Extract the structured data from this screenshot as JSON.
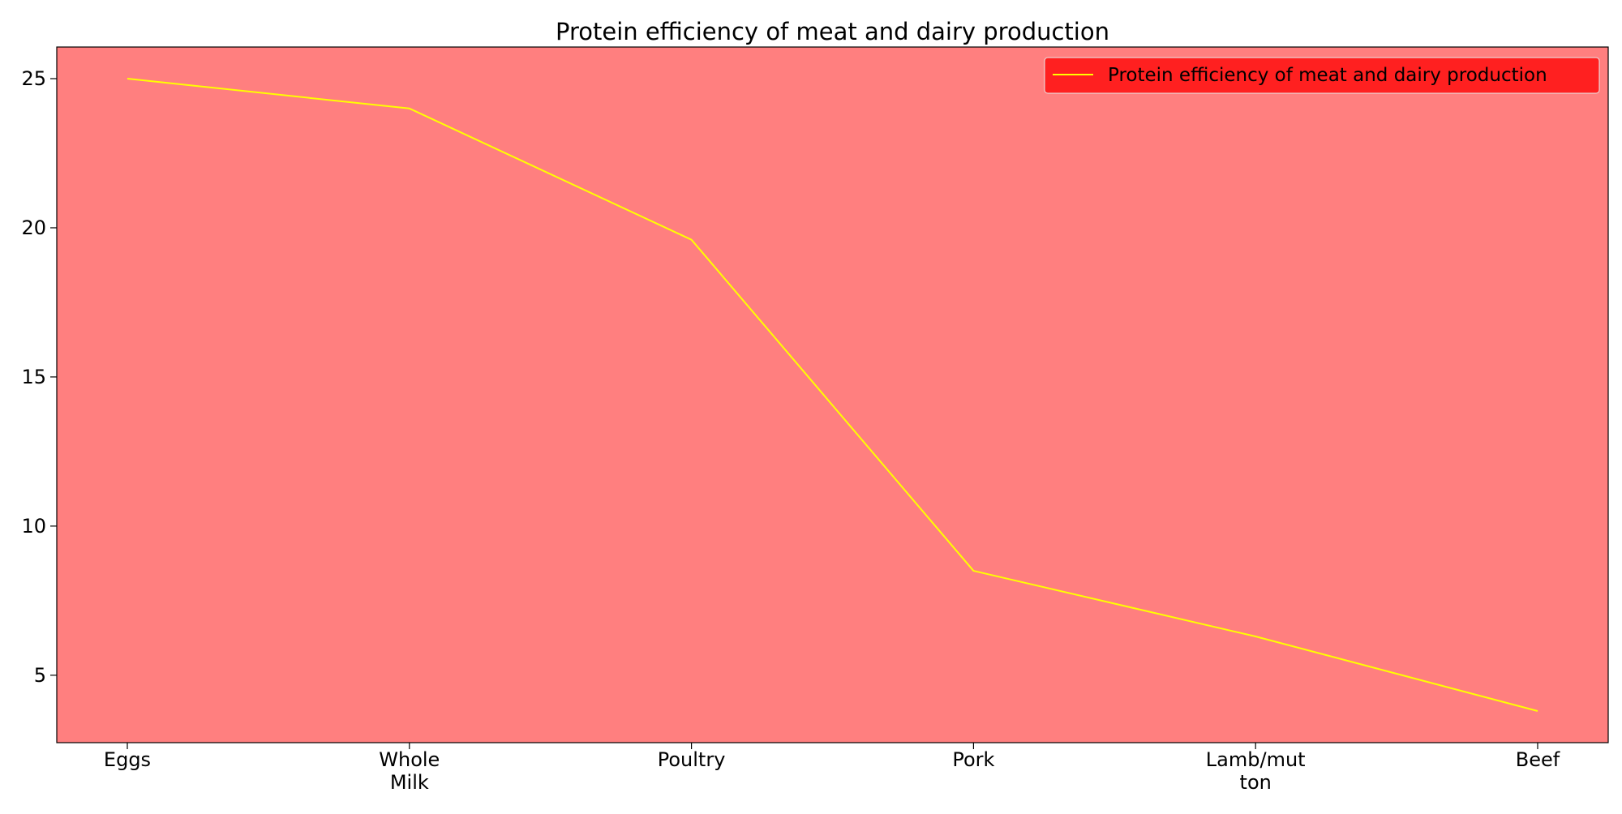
{
  "chart_data": {
    "type": "line",
    "title": "Protein efficiency of meat and dairy production",
    "xlabel": "",
    "ylabel": "",
    "categories": [
      [
        "Eggs"
      ],
      [
        "Whole",
        "Milk"
      ],
      [
        "Poultry"
      ],
      [
        "Pork"
      ],
      [
        "Lamb/mut",
        "ton"
      ],
      [
        "Beef"
      ]
    ],
    "series": [
      {
        "name": "Protein efficiency of meat and dairy production",
        "values": [
          25,
          24,
          19.6,
          8.5,
          6.3,
          3.8
        ],
        "color": "#ffff00"
      }
    ],
    "yticks": [
      5,
      10,
      15,
      20,
      25
    ],
    "ylim": [
      2.74,
      26.06
    ],
    "grid": false,
    "legend_position": "top-right",
    "colors": {
      "plot_background": "#ff7f7f",
      "legend_background": "#ff2020",
      "line": "#ffff00",
      "axes": "#000000"
    }
  }
}
